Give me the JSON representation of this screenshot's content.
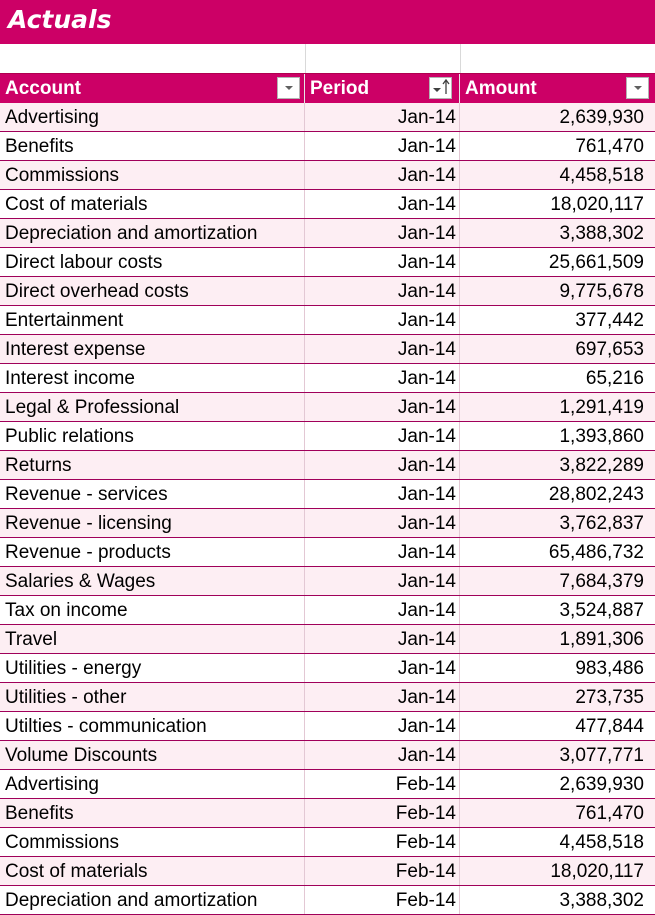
{
  "sheet": {
    "title": "Actuals"
  },
  "columns": {
    "account": "Account",
    "period": "Period",
    "amount": "Amount"
  },
  "rows": [
    {
      "account": "Advertising",
      "period": "Jan-14",
      "amount": "2,639,930"
    },
    {
      "account": "Benefits",
      "period": "Jan-14",
      "amount": "761,470"
    },
    {
      "account": "Commissions",
      "period": "Jan-14",
      "amount": "4,458,518"
    },
    {
      "account": "Cost of materials",
      "period": "Jan-14",
      "amount": "18,020,117"
    },
    {
      "account": "Depreciation and amortization",
      "period": "Jan-14",
      "amount": "3,388,302"
    },
    {
      "account": "Direct labour costs",
      "period": "Jan-14",
      "amount": "25,661,509"
    },
    {
      "account": "Direct overhead costs",
      "period": "Jan-14",
      "amount": "9,775,678"
    },
    {
      "account": "Entertainment",
      "period": "Jan-14",
      "amount": "377,442"
    },
    {
      "account": "Interest expense",
      "period": "Jan-14",
      "amount": "697,653"
    },
    {
      "account": "Interest income",
      "period": "Jan-14",
      "amount": "65,216"
    },
    {
      "account": "Legal & Professional",
      "period": "Jan-14",
      "amount": "1,291,419"
    },
    {
      "account": "Public relations",
      "period": "Jan-14",
      "amount": "1,393,860"
    },
    {
      "account": "Returns",
      "period": "Jan-14",
      "amount": "3,822,289"
    },
    {
      "account": "Revenue  - services",
      "period": "Jan-14",
      "amount": "28,802,243"
    },
    {
      "account": "Revenue - licensing",
      "period": "Jan-14",
      "amount": "3,762,837"
    },
    {
      "account": "Revenue - products",
      "period": "Jan-14",
      "amount": "65,486,732"
    },
    {
      "account": "Salaries & Wages",
      "period": "Jan-14",
      "amount": "7,684,379"
    },
    {
      "account": "Tax on income",
      "period": "Jan-14",
      "amount": "3,524,887"
    },
    {
      "account": "Travel",
      "period": "Jan-14",
      "amount": "1,891,306"
    },
    {
      "account": "Utilities - energy",
      "period": "Jan-14",
      "amount": "983,486"
    },
    {
      "account": "Utilities - other",
      "period": "Jan-14",
      "amount": "273,735"
    },
    {
      "account": "Utilties - communication",
      "period": "Jan-14",
      "amount": "477,844"
    },
    {
      "account": "Volume Discounts",
      "period": "Jan-14",
      "amount": "3,077,771"
    },
    {
      "account": "Advertising",
      "period": "Feb-14",
      "amount": "2,639,930"
    },
    {
      "account": "Benefits",
      "period": "Feb-14",
      "amount": "761,470"
    },
    {
      "account": "Commissions",
      "period": "Feb-14",
      "amount": "4,458,518"
    },
    {
      "account": "Cost of materials",
      "period": "Feb-14",
      "amount": "18,020,117"
    },
    {
      "account": "Depreciation and amortization",
      "period": "Feb-14",
      "amount": "3,388,302"
    }
  ],
  "icons": {
    "account_filter": "filter-dropdown-icon",
    "period_filter": "sort-ascending-filter-icon",
    "amount_filter": "filter-dropdown-icon"
  },
  "colors": {
    "accent": "#cc0066",
    "row_shade": "#fdeef3",
    "row_border": "#a0005a"
  }
}
